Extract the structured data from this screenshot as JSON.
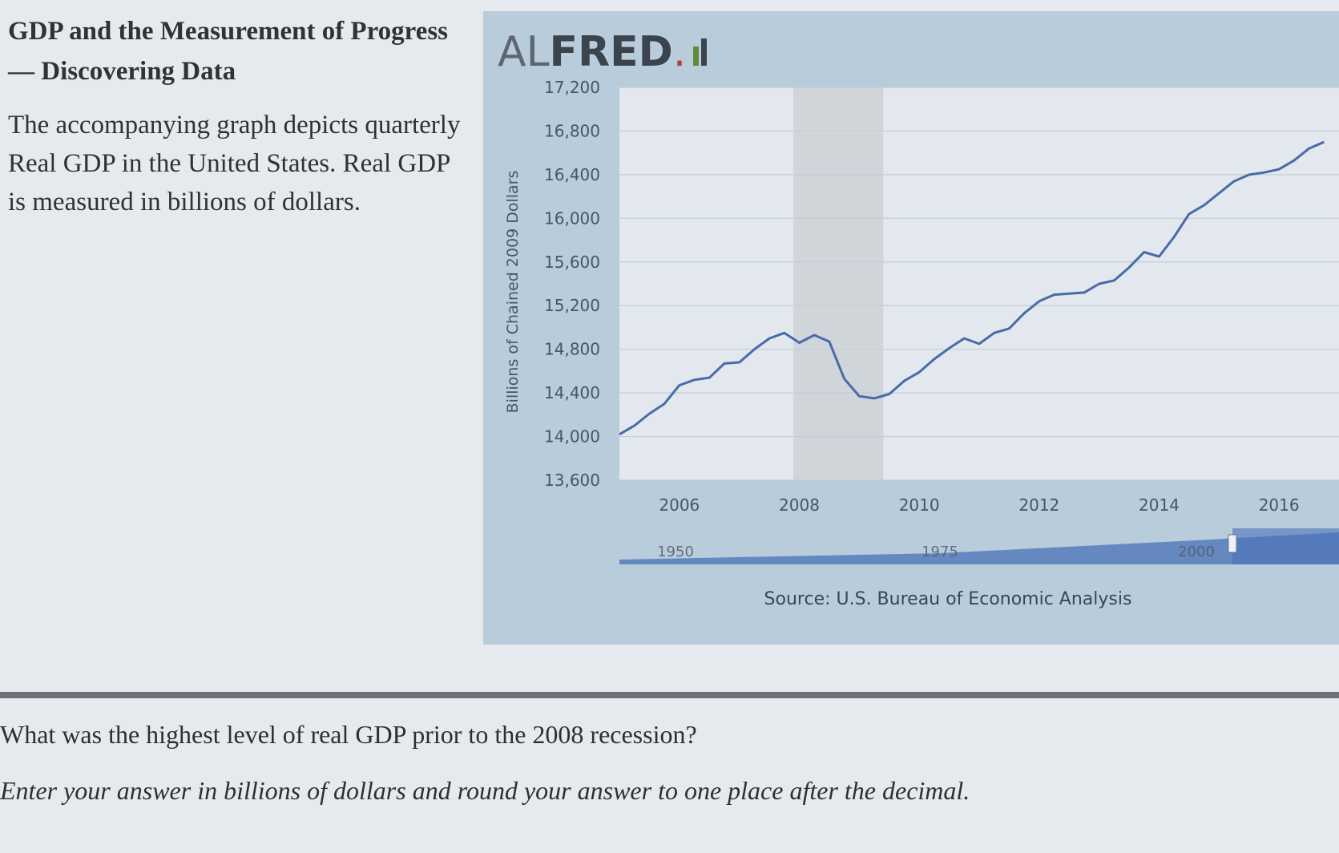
{
  "problem": {
    "heading": "GDP and the Measurement of Progress — Discovering Data",
    "description": "The accompanying graph depicts quarterly Real GDP in the United States. Real GDP is measured in billions of dollars.",
    "question": "What was the highest level of real GDP prior to the 2008 recession?",
    "instruction": "Enter your answer in billions of dollars and round your answer to one place after the decimal."
  },
  "logo": {
    "prefix": "AL",
    "bold": "FRED",
    "dot": "."
  },
  "source_text": "Source: U.S. Bureau of Economic Analysis",
  "navigator": {
    "labels": [
      "1950",
      "1975",
      "2000"
    ]
  },
  "colors": {
    "panel_bg": "#b8ccdc",
    "plot_bg": "#e2e8ee",
    "line": "#4a6aa8",
    "recession": "#d0d5da",
    "navigator_fill": "#4a72b8"
  },
  "chart_data": {
    "type": "line",
    "title": "",
    "xlabel": "",
    "ylabel": "Billions of Chained 2009 Dollars",
    "xlim": [
      2005.0,
      2017.0
    ],
    "ylim": [
      13600,
      17200
    ],
    "y_ticks": [
      13600,
      14000,
      14400,
      14800,
      15200,
      15600,
      16000,
      16400,
      16800,
      17200
    ],
    "x_ticks": [
      2006,
      2008,
      2010,
      2012,
      2014,
      2016
    ],
    "grid": true,
    "recession_shading": [
      2007.9,
      2009.4
    ],
    "series": [
      {
        "x": [
          2005.0,
          2005.25,
          2005.5,
          2005.75,
          2006.0,
          2006.25,
          2006.5,
          2006.75,
          2007.0,
          2007.25,
          2007.5,
          2007.75,
          2008.0,
          2008.25,
          2008.5,
          2008.75,
          2009.0,
          2009.25,
          2009.5,
          2009.75,
          2010.0,
          2010.25,
          2010.5,
          2010.75,
          2011.0,
          2011.25,
          2011.5,
          2011.75,
          2012.0,
          2012.25,
          2012.5,
          2012.75,
          2013.0,
          2013.25,
          2013.5,
          2013.75,
          2014.0,
          2014.25,
          2014.5,
          2014.75,
          2015.0,
          2015.25,
          2015.5,
          2015.75,
          2016.0,
          2016.25,
          2016.5,
          2016.75
        ],
        "y": [
          14020,
          14100,
          14210,
          14300,
          14470,
          14520,
          14540,
          14670,
          14680,
          14800,
          14900,
          14950,
          14860,
          14930,
          14870,
          14530,
          14370,
          14350,
          14390,
          14510,
          14590,
          14710,
          14810,
          14900,
          14850,
          14950,
          14990,
          15130,
          15240,
          15300,
          15310,
          15320,
          15400,
          15430,
          15550,
          15690,
          15650,
          15830,
          16040,
          16120,
          16230,
          16340,
          16400,
          16420,
          16450,
          16530,
          16640,
          16700
        ]
      }
    ]
  }
}
